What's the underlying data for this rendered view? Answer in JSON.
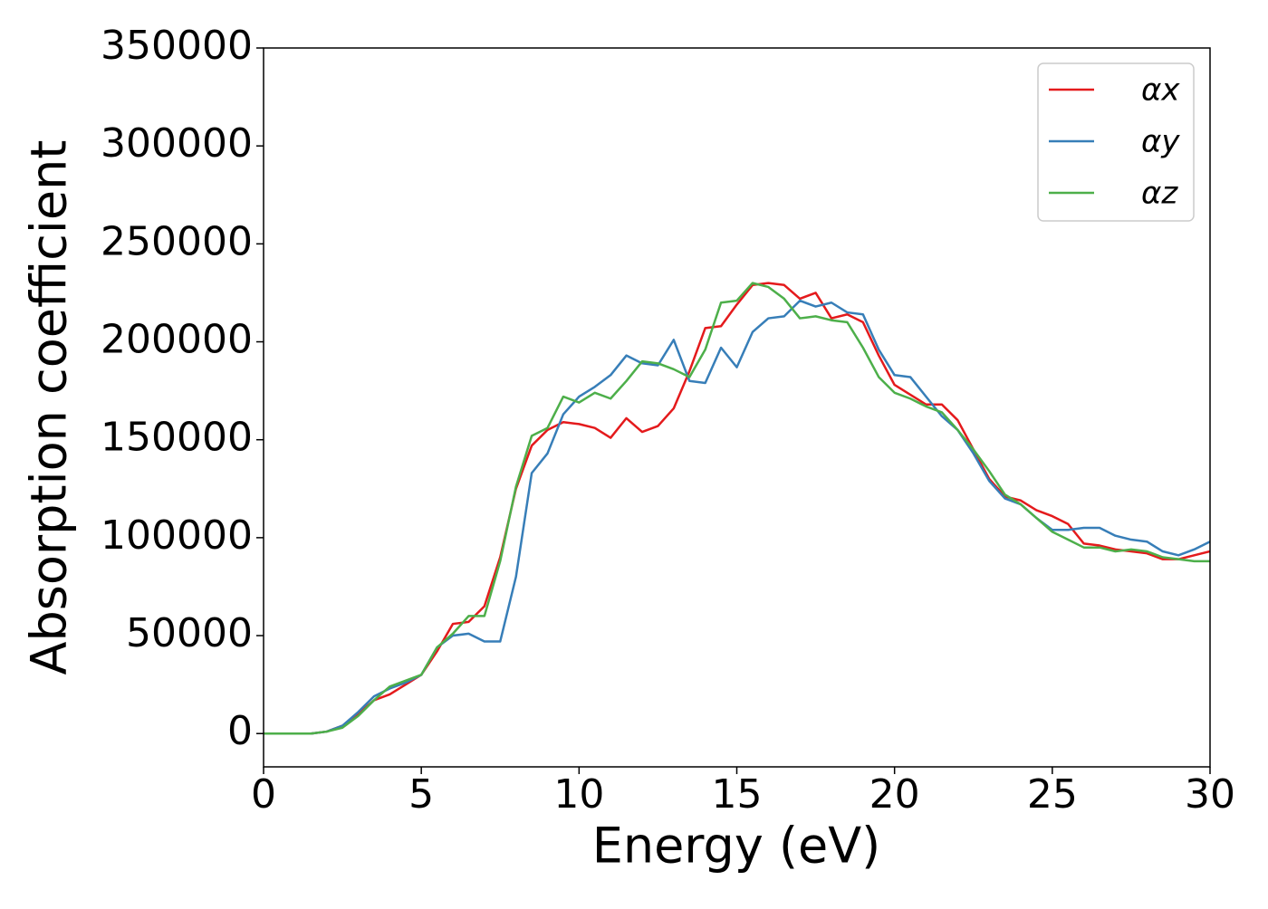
{
  "chart_data": {
    "type": "line",
    "xlabel": "Energy (eV)",
    "ylabel": "Absorption coefficient",
    "x": [
      0,
      0.5,
      1,
      1.5,
      2,
      2.5,
      3,
      3.5,
      4,
      4.5,
      5,
      5.5,
      6,
      6.5,
      7,
      7.5,
      8,
      8.5,
      9,
      9.5,
      10,
      10.5,
      11,
      11.5,
      12,
      12.5,
      13,
      13.5,
      14,
      14.5,
      15,
      15.5,
      16,
      16.5,
      17,
      17.5,
      18,
      18.5,
      19,
      19.5,
      20,
      20.5,
      21,
      21.5,
      22,
      22.5,
      23,
      23.5,
      24,
      24.5,
      25,
      25.5,
      26,
      26.5,
      27,
      27.5,
      28,
      28.5,
      29,
      29.5,
      30
    ],
    "series": [
      {
        "name": "αx",
        "color": "#e41a1c",
        "values": [
          0,
          0,
          0,
          0,
          1000,
          4000,
          10000,
          17000,
          20000,
          25000,
          30000,
          42000,
          56000,
          57000,
          65000,
          90000,
          125000,
          147000,
          155000,
          159000,
          158000,
          156000,
          151000,
          161000,
          154000,
          157000,
          166000,
          185000,
          207000,
          208000,
          219000,
          229000,
          230000,
          229000,
          222000,
          225000,
          212000,
          214000,
          210000,
          193000,
          178000,
          173000,
          168000,
          168000,
          160000,
          145000,
          130000,
          121000,
          119000,
          114000,
          111000,
          107000,
          97000,
          96000,
          94000,
          93000,
          92000,
          89000,
          89000,
          91000,
          93000
        ]
      },
      {
        "name": "αy",
        "color": "#377eb8",
        "values": [
          0,
          0,
          0,
          0,
          1000,
          4000,
          11000,
          19000,
          23000,
          26000,
          30000,
          44000,
          50000,
          51000,
          47000,
          47000,
          80000,
          133000,
          143000,
          163000,
          172000,
          177000,
          183000,
          193000,
          189000,
          188000,
          201000,
          180000,
          179000,
          197000,
          187000,
          205000,
          212000,
          213000,
          221000,
          218000,
          220000,
          215000,
          214000,
          196000,
          183000,
          182000,
          172000,
          162000,
          155000,
          143000,
          129000,
          120000,
          117000,
          110000,
          104000,
          104000,
          105000,
          105000,
          101000,
          99000,
          98000,
          93000,
          91000,
          94000,
          98000
        ]
      },
      {
        "name": "αz",
        "color": "#4daf4a",
        "values": [
          0,
          0,
          0,
          0,
          1000,
          3000,
          9000,
          17000,
          24000,
          27000,
          30000,
          44000,
          51000,
          60000,
          60000,
          88000,
          126000,
          152000,
          156000,
          172000,
          169000,
          174000,
          171000,
          180000,
          190000,
          189000,
          186000,
          182000,
          196000,
          220000,
          221000,
          230000,
          228000,
          222000,
          212000,
          213000,
          211000,
          210000,
          197000,
          182000,
          174000,
          171000,
          167000,
          164000,
          155000,
          145000,
          134000,
          122000,
          117000,
          110000,
          103000,
          99000,
          95000,
          95000,
          93000,
          94000,
          93000,
          90000,
          89000,
          88000,
          88000
        ]
      }
    ],
    "xlim": [
      0,
      30
    ],
    "xticks": [
      0,
      5,
      10,
      15,
      20,
      25,
      30
    ],
    "ylim": [
      -17000,
      350000
    ],
    "yticks": [
      0,
      50000,
      100000,
      150000,
      200000,
      250000,
      300000,
      350000
    ],
    "grid": false,
    "legend": "upper right"
  }
}
